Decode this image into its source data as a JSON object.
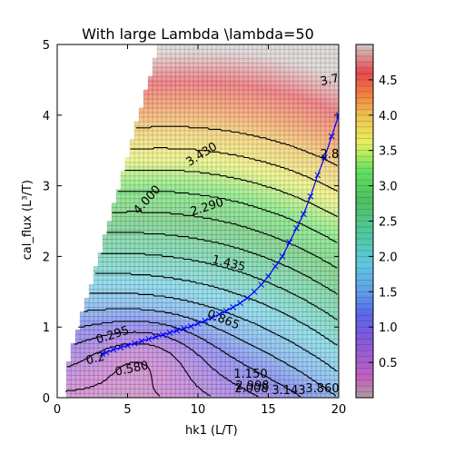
{
  "chart_data": {
    "type": "heatmap",
    "title": "With large Lambda \\lambda=50",
    "xlabel_main": "hk1",
    "xlabel_unit": "(L/T)",
    "ylabel_main": "cal_flux",
    "ylabel_unit": "(L³/T)",
    "xlim": [
      0,
      20
    ],
    "ylim": [
      0,
      5
    ],
    "x_ticks": [
      "0",
      "5",
      "10",
      "15",
      "20"
    ],
    "y_ticks": [
      "0",
      "1",
      "2",
      "3",
      "4",
      "5"
    ],
    "colorbar": {
      "range": [
        0,
        5
      ],
      "ticks": [
        "0.5",
        "1.0",
        "1.5",
        "2.0",
        "2.5",
        "3.0",
        "3.5",
        "4.0",
        "4.5"
      ],
      "colormap": "gist_rainbow_r-like (magenta → blue → cyan → green → yellow → orange → red → grey)"
    },
    "contour_labels": [
      "3.7",
      "3.430",
      "2.8",
      "4.000",
      "2.290",
      "1.435",
      "0.865",
      "0.295",
      "0.580",
      "1.150",
      "2.998",
      "3.143",
      "3.860",
      "2.008",
      "0.2"
    ],
    "trajectory": {
      "name": "",
      "color": "#0000ff",
      "marker": "x",
      "points": [
        [
          3.2,
          0.62
        ],
        [
          3.5,
          0.64
        ],
        [
          4.0,
          0.68
        ],
        [
          4.5,
          0.71
        ],
        [
          5.0,
          0.74
        ],
        [
          5.5,
          0.77
        ],
        [
          6.0,
          0.8
        ],
        [
          6.5,
          0.83
        ],
        [
          7.0,
          0.86
        ],
        [
          7.5,
          0.89
        ],
        [
          8.0,
          0.92
        ],
        [
          8.5,
          0.95
        ],
        [
          9.0,
          0.98
        ],
        [
          9.5,
          1.01
        ],
        [
          10.0,
          1.05
        ],
        [
          10.5,
          1.09
        ],
        [
          11.0,
          1.13
        ],
        [
          11.5,
          1.18
        ],
        [
          12.0,
          1.23
        ],
        [
          12.5,
          1.28
        ],
        [
          13.0,
          1.34
        ],
        [
          13.5,
          1.41
        ],
        [
          14.0,
          1.5
        ],
        [
          14.5,
          1.6
        ],
        [
          15.0,
          1.72
        ],
        [
          15.5,
          1.86
        ],
        [
          16.0,
          2.0
        ],
        [
          16.5,
          2.2
        ],
        [
          17.0,
          2.4
        ],
        [
          17.5,
          2.6
        ],
        [
          18.0,
          2.85
        ],
        [
          18.5,
          3.15
        ],
        [
          19.0,
          3.4
        ],
        [
          19.5,
          3.7
        ],
        [
          20.0,
          4.0
        ]
      ]
    }
  }
}
